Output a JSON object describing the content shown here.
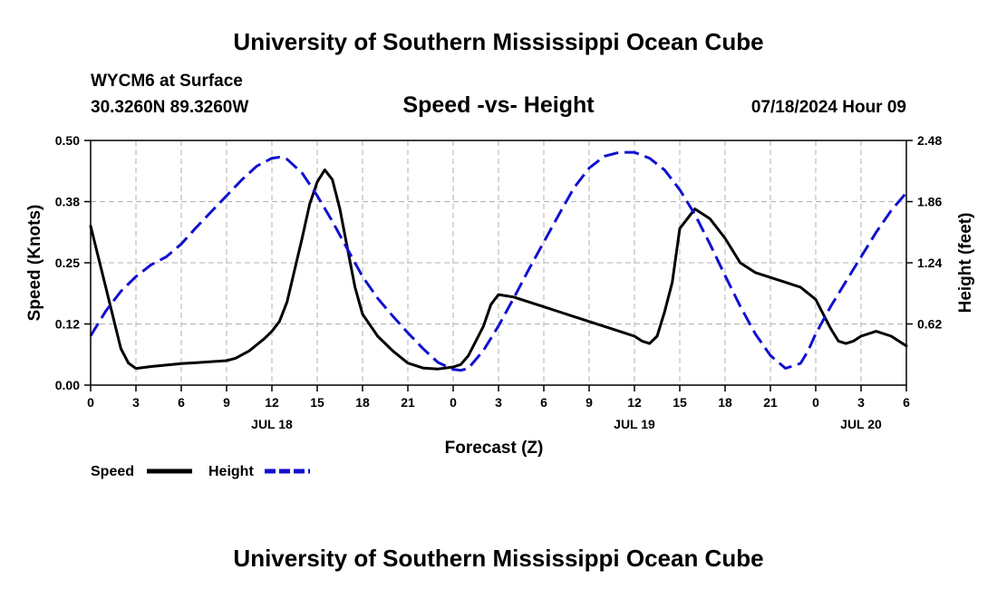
{
  "header": {
    "title": "University of Southern Mississippi Ocean Cube",
    "station": "WYCM6 at Surface",
    "coords": "30.3260N  89.3260W",
    "date": "07/18/2024 Hour 09"
  },
  "footer": {
    "title": "University of Southern Mississippi Ocean Cube"
  },
  "chart_data": {
    "type": "line",
    "title": "Speed -vs- Height",
    "xlabel": "Forecast (Z)",
    "ylabel": "Speed (Knots)",
    "y2label": "Height (feet)",
    "x_unit": "hours",
    "xlim": [
      0,
      54
    ],
    "ylim": [
      0,
      0.5
    ],
    "y2lim": [
      0,
      2.48
    ],
    "x_ticks": [
      0,
      3,
      6,
      9,
      12,
      15,
      18,
      21,
      24,
      27,
      30,
      33,
      36,
      39,
      42,
      45,
      48,
      51,
      54
    ],
    "x_tick_labels": [
      "0",
      "3",
      "6",
      "9",
      "12",
      "15",
      "18",
      "21",
      "0",
      "3",
      "6",
      "9",
      "12",
      "15",
      "18",
      "21",
      "0",
      "3",
      "6"
    ],
    "day_labels": [
      {
        "x": 12,
        "label": "JUL 18"
      },
      {
        "x": 36,
        "label": "JUL 19"
      },
      {
        "x": 51,
        "label": "JUL 20"
      }
    ],
    "y_ticks": [
      0,
      0.125,
      0.25,
      0.375,
      0.5
    ],
    "y_tick_labels": [
      "0.00",
      "0.12",
      "0.25",
      "0.38",
      "0.50"
    ],
    "y2_ticks": [
      0.62,
      1.24,
      1.86,
      2.48
    ],
    "y2_tick_labels": [
      "0.62",
      "1.24",
      "1.86",
      "2.48"
    ],
    "grid": true,
    "legend_position": "bottom-left",
    "series": [
      {
        "name": "Speed",
        "axis": "left",
        "color": "#000000",
        "dash": "solid",
        "x": [
          0,
          1,
          2,
          2.5,
          3,
          4,
          5,
          6,
          7,
          8,
          9,
          9.6,
          10.5,
          11.5,
          12,
          12.5,
          13,
          14,
          14.5,
          15,
          15.5,
          16,
          16.5,
          17,
          17.5,
          18,
          19,
          20,
          21,
          22,
          23,
          24,
          24.5,
          25,
          26,
          26.5,
          27,
          28,
          29,
          30,
          31,
          32,
          33,
          34,
          35,
          36,
          36.5,
          37,
          37.5,
          38,
          38.5,
          39,
          40,
          41,
          42,
          43,
          44,
          45,
          46,
          47,
          48,
          48.5,
          49,
          49.5,
          50,
          50.5,
          51,
          52,
          53,
          54
        ],
        "values": [
          0.325,
          0.2,
          0.075,
          0.045,
          0.034,
          0.038,
          0.041,
          0.044,
          0.046,
          0.048,
          0.05,
          0.055,
          0.07,
          0.095,
          0.11,
          0.13,
          0.17,
          0.3,
          0.37,
          0.415,
          0.44,
          0.42,
          0.36,
          0.28,
          0.2,
          0.145,
          0.1,
          0.07,
          0.045,
          0.035,
          0.033,
          0.037,
          0.042,
          0.06,
          0.12,
          0.165,
          0.185,
          0.18,
          0.17,
          0.16,
          0.15,
          0.14,
          0.13,
          0.12,
          0.11,
          0.1,
          0.09,
          0.085,
          0.1,
          0.15,
          0.21,
          0.32,
          0.36,
          0.34,
          0.3,
          0.25,
          0.23,
          0.22,
          0.21,
          0.2,
          0.175,
          0.145,
          0.115,
          0.09,
          0.085,
          0.09,
          0.1,
          0.11,
          0.1,
          0.08
        ]
      },
      {
        "name": "Height",
        "axis": "right",
        "color": "#1010d0",
        "dash": "dashed",
        "x": [
          0,
          1,
          2,
          3,
          4,
          5,
          6,
          7,
          8,
          9,
          10,
          11,
          12,
          12.5,
          13,
          14,
          15,
          16,
          17,
          18,
          19,
          20,
          21,
          22,
          23,
          24,
          24.5,
          25,
          26,
          27,
          28,
          29,
          30,
          31,
          32,
          33,
          34,
          35,
          36,
          37,
          38,
          39,
          40,
          41,
          42,
          43,
          44,
          45,
          46,
          47,
          47.5,
          48,
          49,
          50,
          51,
          52,
          53,
          54
        ],
        "values": [
          0.5,
          0.75,
          0.95,
          1.1,
          1.22,
          1.3,
          1.43,
          1.6,
          1.76,
          1.92,
          2.08,
          2.22,
          2.3,
          2.31,
          2.29,
          2.15,
          1.92,
          1.66,
          1.38,
          1.1,
          0.88,
          0.7,
          0.53,
          0.37,
          0.23,
          0.16,
          0.15,
          0.17,
          0.35,
          0.6,
          0.88,
          1.17,
          1.45,
          1.73,
          2.0,
          2.2,
          2.32,
          2.36,
          2.36,
          2.3,
          2.18,
          1.98,
          1.73,
          1.43,
          1.11,
          0.8,
          0.52,
          0.3,
          0.17,
          0.22,
          0.35,
          0.52,
          0.8,
          1.05,
          1.3,
          1.55,
          1.77,
          1.95
        ]
      }
    ]
  }
}
